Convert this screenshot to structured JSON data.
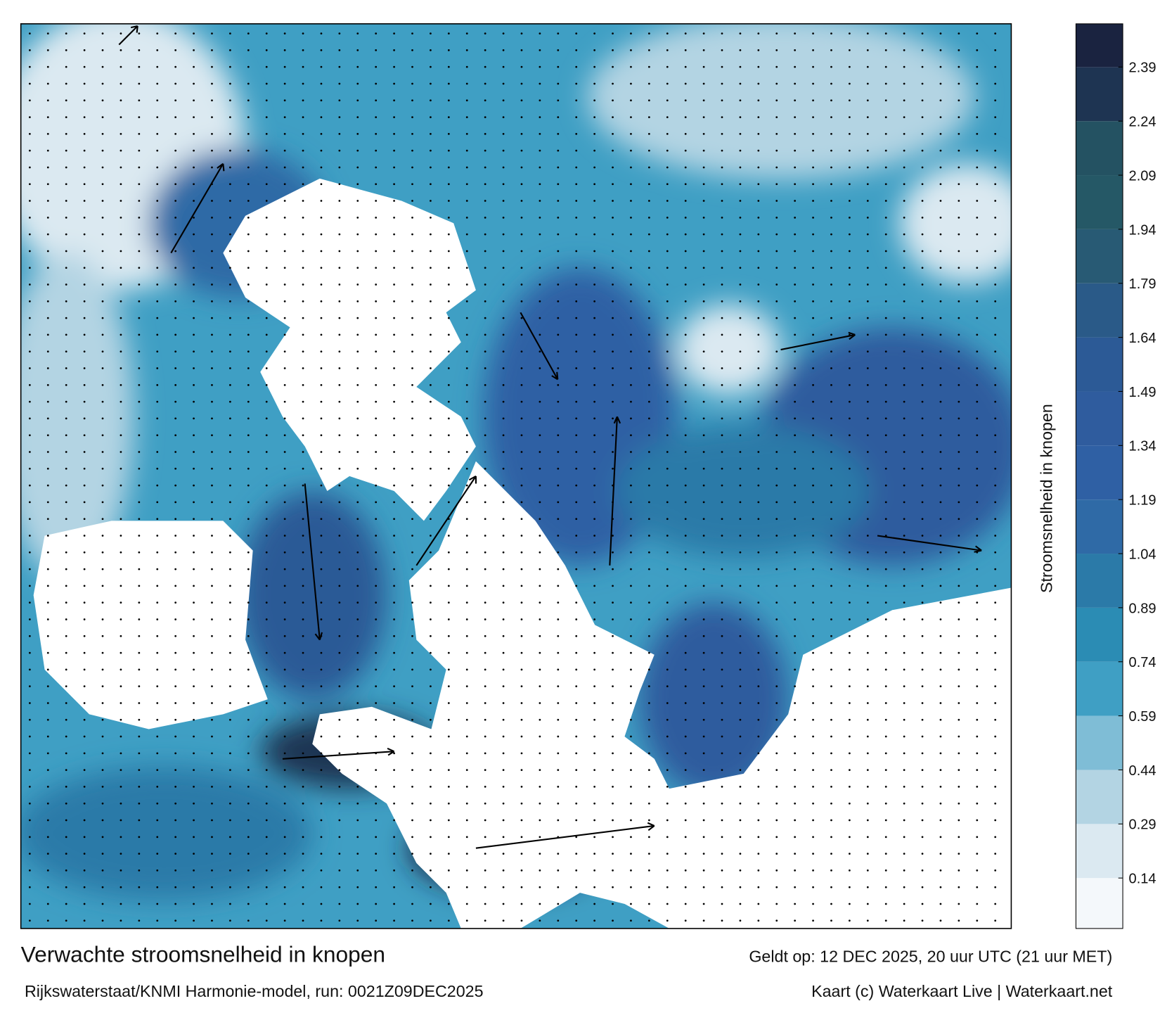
{
  "map": {
    "title": "Verwachte stroomsnelheid in knopen",
    "valid_time": "Geldt op: 12 DEC 2025, 20 uur UTC (21 uur MET)",
    "source": "Rijkswaterstaat/KNMI Harmonie-model, run: 0021Z09DEC2025",
    "credit": "Kaart (c) Waterkaart Live | Waterkaart.net"
  },
  "colorbar": {
    "label": "Stroomsnelheid in knopen",
    "lim": [
      0,
      2.51
    ],
    "ticks": [
      0.14,
      0.29,
      0.44,
      0.59,
      0.74,
      0.89,
      1.04,
      1.19,
      1.34,
      1.49,
      1.64,
      1.79,
      1.94,
      2.09,
      2.24,
      2.39
    ],
    "colors": [
      "#f4f8fb",
      "#dbe9f1",
      "#b3d4e3",
      "#7fbdd6",
      "#3f9fc4",
      "#2b8cb4",
      "#2b7aa8",
      "#2f6aa6",
      "#2f60a4",
      "#2f5c9e",
      "#2c5a96",
      "#2a5a88",
      "#285a74",
      "#255866",
      "#245262",
      "#1e3452",
      "#1a2340"
    ]
  }
}
